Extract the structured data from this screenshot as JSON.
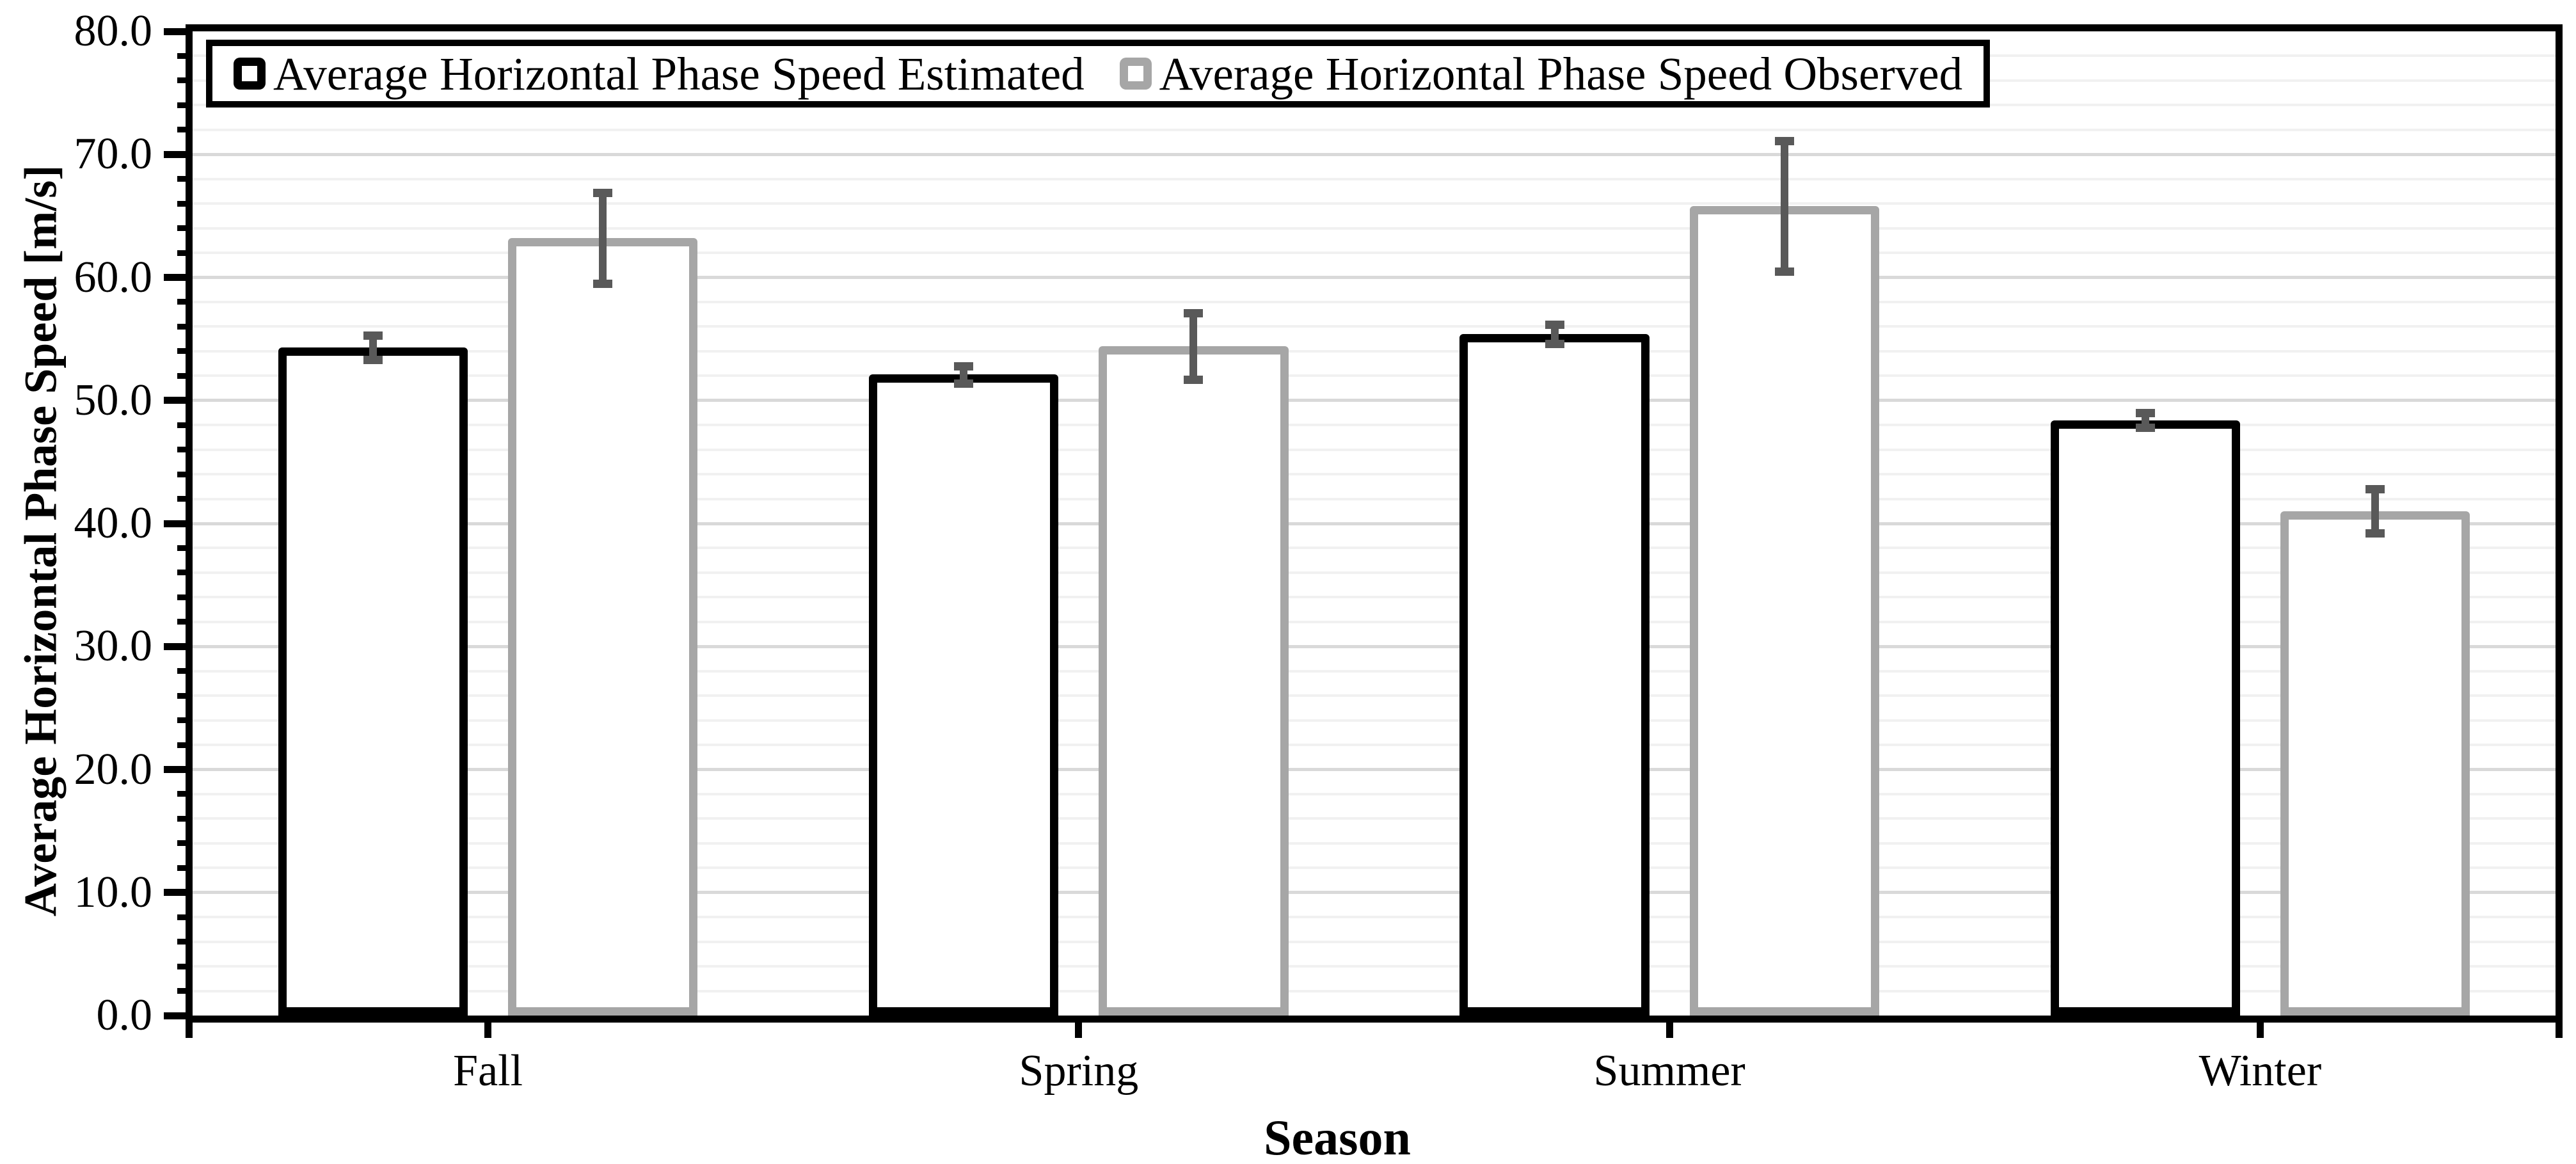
{
  "chart_data": {
    "type": "bar",
    "title": "",
    "categories": [
      "Fall",
      "Spring",
      "Summer",
      "Winter"
    ],
    "series": [
      {
        "name": "Average Horizontal Phase Speed Estimated",
        "values": [
          54.3,
          52.1,
          55.4,
          48.4
        ],
        "errors": [
          1.0,
          0.7,
          0.8,
          0.6
        ],
        "outline_color": "#000000"
      },
      {
        "name": "Average Horizontal Phase Speed Observed",
        "values": [
          63.2,
          54.4,
          65.8,
          41.0
        ],
        "errors": [
          3.7,
          2.7,
          5.3,
          1.8
        ],
        "outline_color": "#A6A6A6"
      }
    ],
    "xlabel": "Season",
    "ylabel": "Average Horizontal Phase Speed [m/s]",
    "ylim": [
      0,
      80
    ],
    "y_major_step": 10,
    "y_minor_step": 2,
    "ytick_labels": [
      "0.0",
      "10.0",
      "20.0",
      "30.0",
      "40.0",
      "50.0",
      "60.0",
      "70.0",
      "80.0"
    ],
    "grid": "on",
    "legend_position": "top-left",
    "bar_fill_color": "#FFFFFF",
    "error_bar_color": "#595959",
    "gridline_major_color": "#D9D9D9",
    "gridline_minor_color": "#F1F1F1",
    "axis_color": "#000000"
  }
}
